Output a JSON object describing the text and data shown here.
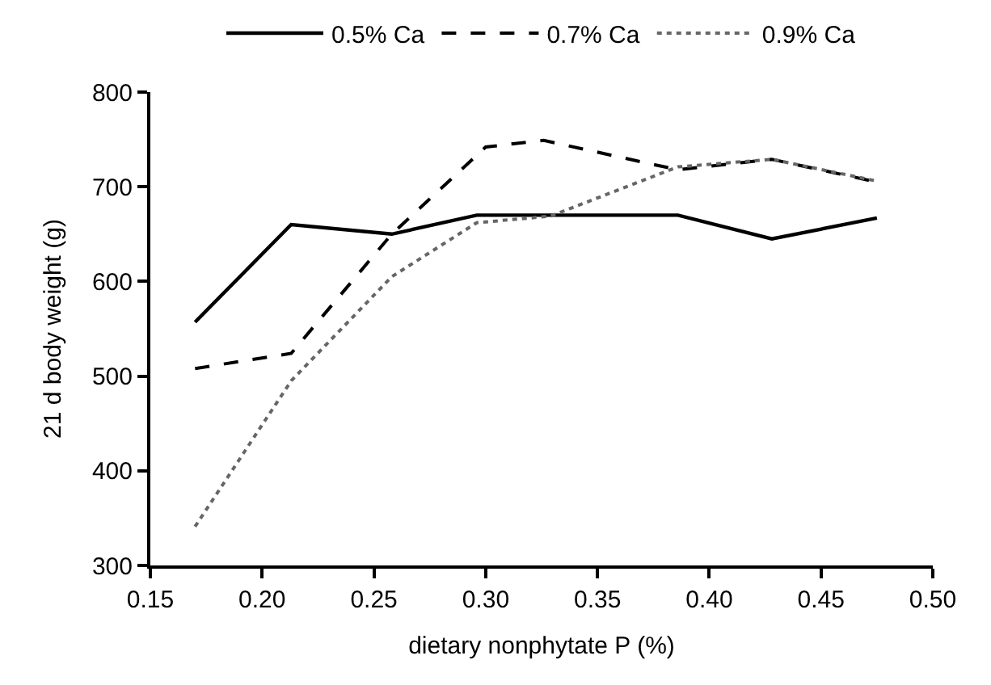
{
  "chart_data": {
    "type": "line",
    "xlabel": "dietary nonphytate P (%)",
    "ylabel": "21 d body weight (g)",
    "xlim": [
      0.15,
      0.5
    ],
    "xticks": [
      {
        "value": 0.15,
        "label": "0.15"
      },
      {
        "value": 0.2,
        "label": "0.20"
      },
      {
        "value": 0.25,
        "label": "0.25"
      },
      {
        "value": 0.3,
        "label": "0.30"
      },
      {
        "value": 0.35,
        "label": "0.35"
      },
      {
        "value": 0.4,
        "label": "0.40"
      },
      {
        "value": 0.45,
        "label": "0.45"
      },
      {
        "value": 0.5,
        "label": "0.50"
      }
    ],
    "ylim": [
      300,
      800
    ],
    "yticks": [
      300,
      400,
      500,
      600,
      700,
      800
    ],
    "legend": "top",
    "marker": "none",
    "series": [
      {
        "name": "0.5% Ca",
        "color": "#000000",
        "line_style": "solid",
        "x": [
          0.17,
          0.213,
          0.258,
          0.296,
          0.386,
          0.428,
          0.475
        ],
        "values": [
          557,
          660,
          650,
          670,
          670,
          645,
          667
        ]
      },
      {
        "name": "0.7% Ca",
        "color": "#000000",
        "line_style": "dashed",
        "x": [
          0.17,
          0.213,
          0.258,
          0.3,
          0.326,
          0.376,
          0.386,
          0.428,
          0.473
        ],
        "values": [
          508,
          524,
          650,
          742,
          749,
          723,
          718,
          729,
          706
        ]
      },
      {
        "name": "0.9% Ca",
        "color": "#666666",
        "line_style": "dotted",
        "x": [
          0.17,
          0.213,
          0.258,
          0.296,
          0.329,
          0.386,
          0.428,
          0.475
        ],
        "values": [
          341,
          495,
          605,
          662,
          669,
          721,
          729,
          706
        ]
      }
    ]
  }
}
